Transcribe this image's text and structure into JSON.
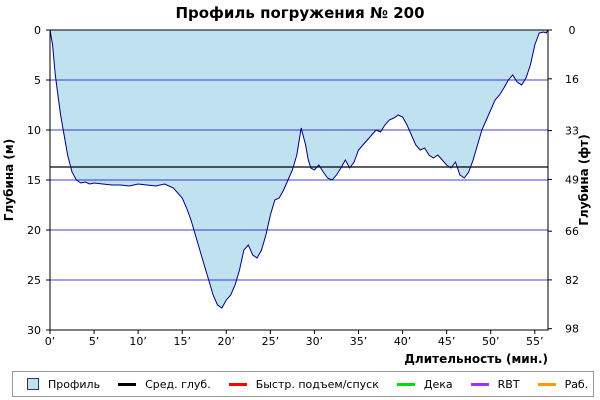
{
  "chart_data": {
    "type": "area",
    "title": "Профиль погружения № 200",
    "xlabel": "Длительность (мин.)",
    "ylabel_left": "Глубина (м)",
    "ylabel_right": "Глубина (фт)",
    "xlim": [
      0,
      56.5
    ],
    "ylim": [
      0,
      30
    ],
    "y_inverted": true,
    "x_ticks": [
      0,
      5,
      10,
      15,
      20,
      25,
      30,
      35,
      40,
      45,
      50,
      55
    ],
    "x_tick_labels": [
      "0’",
      "5’",
      "10’",
      "15’",
      "20’",
      "25’",
      "30’",
      "35’",
      "40’",
      "45’",
      "50’",
      "55’"
    ],
    "y_ticks_left": [
      0,
      5,
      10,
      15,
      20,
      25,
      30
    ],
    "y_tick_labels_left": [
      "0",
      "5",
      "10",
      "15",
      "20",
      "25",
      "30"
    ],
    "y_ticks_right_depth_m": [
      0,
      4.88,
      10.06,
      14.94,
      20.12,
      24.99,
      29.87
    ],
    "y_tick_labels_right": [
      "0",
      "16",
      "33",
      "49",
      "66",
      "82",
      "98"
    ],
    "grid": "horizontal",
    "mean_depth": 13.7,
    "colors": {
      "fill": "#bfe1f0",
      "profile_line": "#000080",
      "grid": "#0000cc",
      "mean": "#000000",
      "ascent": "#ff0000",
      "deco": "#00dd00",
      "rbt": "#9933ff",
      "work": "#ff9900"
    },
    "series": [
      {
        "name": "Профиль",
        "x": [
          0,
          0.3,
          0.6,
          0.9,
          1.2,
          1.6,
          2.0,
          2.5,
          3.0,
          3.5,
          4.0,
          4.5,
          5.0,
          6.0,
          7.0,
          8.0,
          9.0,
          10.0,
          11.0,
          12.0,
          13.0,
          14.0,
          15.0,
          15.5,
          16.0,
          16.5,
          17.0,
          17.5,
          18.0,
          18.5,
          19.0,
          19.5,
          20.0,
          20.5,
          21.0,
          21.5,
          22.0,
          22.5,
          23.0,
          23.5,
          24.0,
          24.5,
          25.0,
          25.5,
          26.0,
          26.5,
          27.0,
          27.5,
          28.0,
          28.5,
          29.0,
          29.3,
          29.6,
          30.0,
          30.5,
          31.0,
          31.5,
          32.0,
          32.5,
          33.0,
          33.5,
          34.0,
          34.5,
          35.0,
          35.5,
          36.0,
          36.5,
          37.0,
          37.5,
          38.0,
          38.5,
          39.0,
          39.5,
          40.0,
          40.5,
          41.0,
          41.5,
          42.0,
          42.5,
          43.0,
          43.5,
          44.0,
          44.5,
          45.0,
          45.5,
          46.0,
          46.5,
          47.0,
          47.5,
          48.0,
          48.5,
          49.0,
          49.5,
          50.0,
          50.5,
          51.0,
          51.5,
          52.0,
          52.5,
          53.0,
          53.5,
          54.0,
          54.5,
          55.0,
          55.5,
          56.0,
          56.3,
          56.5
        ],
        "y": [
          0,
          1.5,
          4.5,
          6.5,
          8.5,
          10.5,
          12.5,
          14.2,
          15.0,
          15.3,
          15.2,
          15.4,
          15.3,
          15.4,
          15.5,
          15.5,
          15.6,
          15.4,
          15.5,
          15.6,
          15.4,
          15.8,
          16.8,
          17.8,
          19.0,
          20.5,
          22.0,
          23.5,
          25.0,
          26.5,
          27.5,
          27.8,
          27.0,
          26.5,
          25.5,
          24.0,
          22.0,
          21.5,
          22.5,
          22.8,
          22.0,
          20.5,
          18.5,
          17.0,
          16.8,
          16.0,
          15.0,
          14.0,
          12.5,
          9.8,
          11.5,
          13.0,
          13.8,
          14.0,
          13.5,
          14.2,
          14.8,
          15.0,
          14.5,
          13.8,
          13.0,
          13.8,
          13.2,
          12.0,
          11.5,
          11.0,
          10.5,
          10.0,
          10.2,
          9.5,
          9.0,
          8.8,
          8.5,
          8.7,
          9.5,
          10.5,
          11.5,
          12.0,
          11.8,
          12.5,
          12.8,
          12.5,
          13.0,
          13.5,
          13.8,
          13.2,
          14.5,
          14.8,
          14.2,
          13.0,
          11.5,
          10.0,
          9.0,
          8.0,
          7.0,
          6.5,
          5.8,
          5.0,
          4.5,
          5.2,
          5.5,
          4.8,
          3.5,
          1.5,
          0.3,
          0.2,
          0.3,
          0
        ]
      }
    ],
    "legend": {
      "items": [
        {
          "label": "Профиль",
          "kind": "box",
          "color": "#bfe1f0"
        },
        {
          "label": "Сред. глуб.",
          "kind": "line",
          "color": "#000000"
        },
        {
          "label": "Быстр. подъем/спуск",
          "kind": "line",
          "color": "#ff0000"
        },
        {
          "label": "Дека",
          "kind": "line",
          "color": "#00dd00"
        },
        {
          "label": "RBT",
          "kind": "line",
          "color": "#9933ff"
        },
        {
          "label": "Раб.",
          "kind": "line",
          "color": "#ff9900"
        }
      ]
    }
  }
}
